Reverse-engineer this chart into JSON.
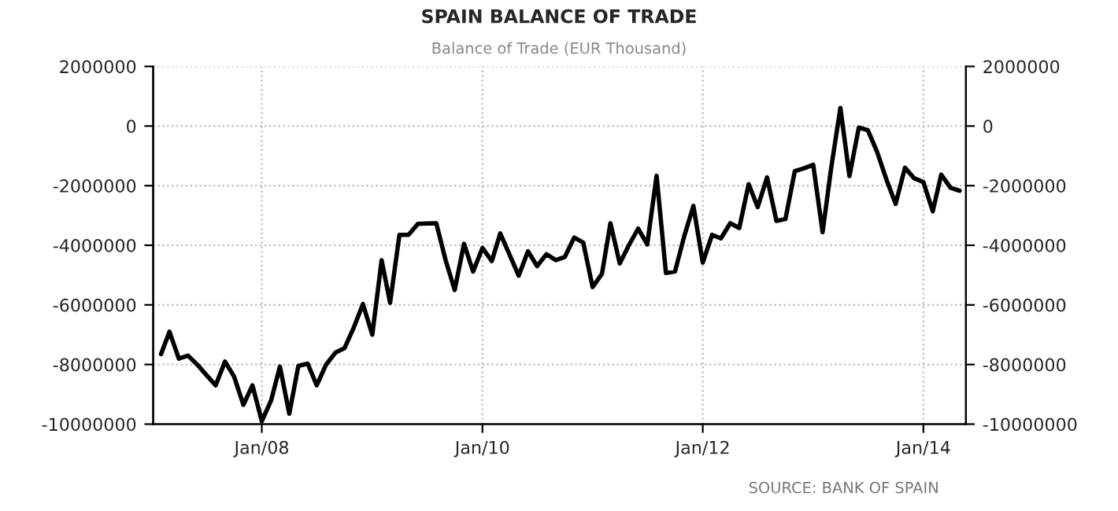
{
  "chart_data": {
    "type": "line",
    "title": "SPAIN BALANCE OF TRADE",
    "subtitle": "Balance of Trade (EUR Thousand)",
    "annotations": [
      "SOURCE: BANK OF SPAIN"
    ],
    "x": [
      "2007-02",
      "2007-03",
      "2007-04",
      "2007-05",
      "2007-06",
      "2007-07",
      "2007-08",
      "2007-09",
      "2007-10",
      "2007-11",
      "2007-12",
      "2008-01",
      "2008-02",
      "2008-03",
      "2008-04",
      "2008-05",
      "2008-06",
      "2008-07",
      "2008-08",
      "2008-09",
      "2008-10",
      "2008-11",
      "2008-12",
      "2009-01",
      "2009-02",
      "2009-03",
      "2009-04",
      "2009-05",
      "2009-06",
      "2009-07",
      "2009-08",
      "2009-09",
      "2009-10",
      "2009-11",
      "2009-12",
      "2010-01",
      "2010-02",
      "2010-03",
      "2010-04",
      "2010-05",
      "2010-06",
      "2010-07",
      "2010-08",
      "2010-09",
      "2010-10",
      "2010-11",
      "2010-12",
      "2011-01",
      "2011-02",
      "2011-03",
      "2011-04",
      "2011-05",
      "2011-06",
      "2011-07",
      "2011-08",
      "2011-09",
      "2011-10",
      "2011-11",
      "2011-12",
      "2012-01",
      "2012-02",
      "2012-03",
      "2012-04",
      "2012-05",
      "2012-06",
      "2012-07",
      "2012-08",
      "2012-09",
      "2012-10",
      "2012-11",
      "2012-12",
      "2013-01",
      "2013-02",
      "2013-03",
      "2013-04",
      "2013-05",
      "2013-06",
      "2013-07",
      "2013-08",
      "2013-09",
      "2013-10",
      "2013-11",
      "2013-12",
      "2014-01",
      "2014-02",
      "2014-03",
      "2014-04",
      "2014-05"
    ],
    "series": [
      {
        "color": "#000000",
        "values": [
          -7650000,
          -6900000,
          -7800000,
          -7700000,
          -8000000,
          -8350000,
          -8700000,
          -7900000,
          -8400000,
          -9350000,
          -8700000,
          -9900000,
          -9200000,
          -8070000,
          -9650000,
          -8050000,
          -7970000,
          -8700000,
          -8000000,
          -7600000,
          -7450000,
          -6750000,
          -5970000,
          -7000000,
          -4500000,
          -5930000,
          -3650000,
          -3650000,
          -3280000,
          -3270000,
          -3260000,
          -4500000,
          -5500000,
          -3950000,
          -4880000,
          -4090000,
          -4530000,
          -3600000,
          -4320000,
          -5020000,
          -4200000,
          -4700000,
          -4300000,
          -4500000,
          -4390000,
          -3740000,
          -3910000,
          -5400000,
          -4960000,
          -3260000,
          -4610000,
          -4000000,
          -3440000,
          -3970000,
          -1670000,
          -4930000,
          -4880000,
          -3680000,
          -2680000,
          -4580000,
          -3650000,
          -3770000,
          -3260000,
          -3420000,
          -1950000,
          -2720000,
          -1720000,
          -3180000,
          -3120000,
          -1510000,
          -1420000,
          -1300000,
          -3560000,
          -1440000,
          610000,
          -1680000,
          -50000,
          -140000,
          -880000,
          -1810000,
          -2610000,
          -1400000,
          -1750000,
          -1880000,
          -2860000,
          -1630000,
          -2070000,
          -2170000
        ]
      }
    ],
    "xlim": [
      "2007-01-06",
      "2014-05-22"
    ],
    "xticks": [
      {
        "value": "2008-01",
        "label": "Jan/08"
      },
      {
        "value": "2010-01",
        "label": "Jan/10"
      },
      {
        "value": "2012-01",
        "label": "Jan/12"
      },
      {
        "value": "2014-01",
        "label": "Jan/14"
      }
    ],
    "ylim": [
      -10000000,
      2000000
    ],
    "yticks": [
      -10000000,
      -8000000,
      -6000000,
      -4000000,
      -2000000,
      0,
      2000000
    ],
    "y2lim": [
      -10000000,
      2000000
    ],
    "y2ticks": [
      -10000000,
      -8000000,
      -6000000,
      -4000000,
      -2000000,
      0,
      2000000
    ],
    "grid": true,
    "legend": false,
    "marker": "none",
    "line_style": "solid"
  }
}
